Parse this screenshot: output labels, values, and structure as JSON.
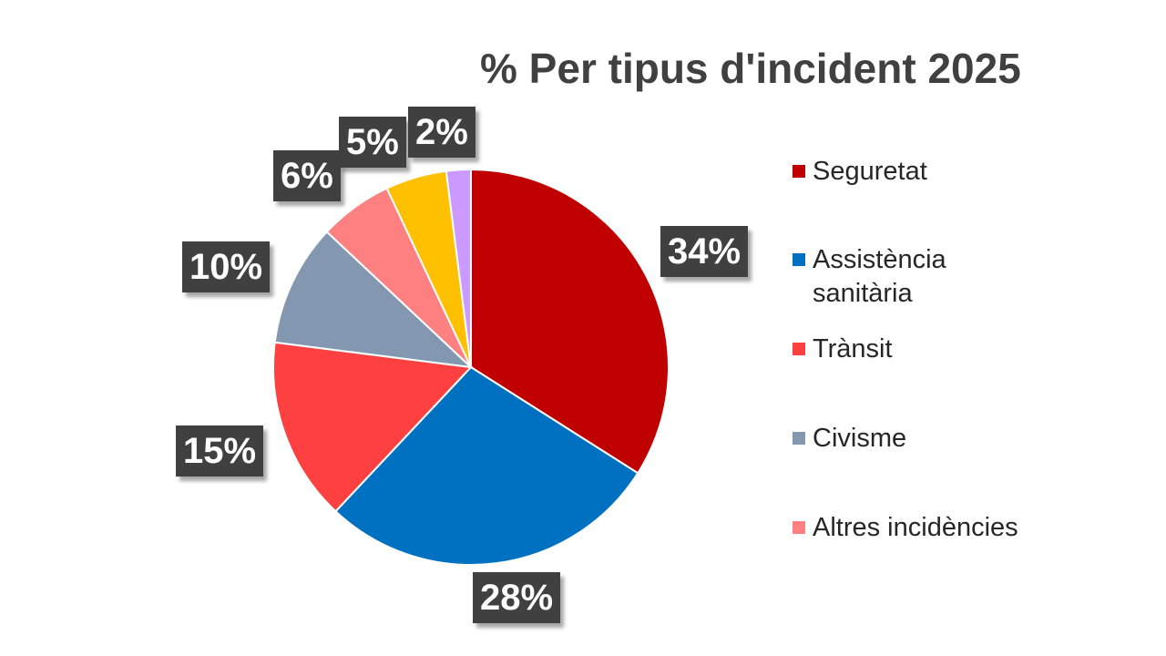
{
  "chart_data": {
    "type": "pie",
    "title": "% Per tipus d'incident 2025",
    "slices": [
      {
        "name": "Seguretat",
        "value": 34,
        "label": "34%",
        "color": "#C00000"
      },
      {
        "name": "Assistència sanitària",
        "value": 28,
        "label": "28%",
        "color": "#0070C0"
      },
      {
        "name": "Trànsit",
        "value": 15,
        "label": "15%",
        "color": "#FF4040"
      },
      {
        "name": "Civisme",
        "value": 10,
        "label": "10%",
        "color": "#8497B0"
      },
      {
        "name": "Altres incidències",
        "value": 6,
        "label": "6%",
        "color": "#FF8080"
      },
      {
        "name": "",
        "value": 5,
        "label": "5%",
        "color": "#FFC000"
      },
      {
        "name": "",
        "value": 2,
        "label": "2%",
        "color": "#CC99FF"
      }
    ],
    "legend": {
      "position": "right",
      "entries": [
        "Seguretat",
        "Assistència sanitària",
        "Trànsit",
        "Civisme",
        "Altres incidències"
      ]
    },
    "label_color": "#404040"
  }
}
